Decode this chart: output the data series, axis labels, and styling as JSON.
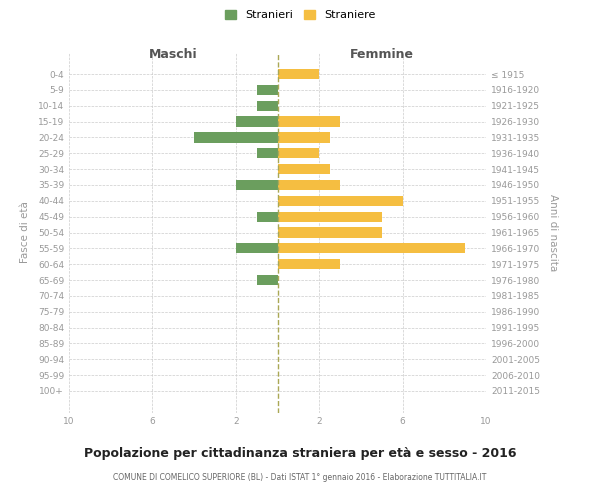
{
  "age_groups": [
    "0-4",
    "5-9",
    "10-14",
    "15-19",
    "20-24",
    "25-29",
    "30-34",
    "35-39",
    "40-44",
    "45-49",
    "50-54",
    "55-59",
    "60-64",
    "65-69",
    "70-74",
    "75-79",
    "80-84",
    "85-89",
    "90-94",
    "95-99",
    "100+"
  ],
  "birth_years": [
    "2011-2015",
    "2006-2010",
    "2001-2005",
    "1996-2000",
    "1991-1995",
    "1986-1990",
    "1981-1985",
    "1976-1980",
    "1971-1975",
    "1966-1970",
    "1961-1965",
    "1956-1960",
    "1951-1955",
    "1946-1950",
    "1941-1945",
    "1936-1940",
    "1931-1935",
    "1926-1930",
    "1921-1925",
    "1916-1920",
    "≤ 1915"
  ],
  "males": [
    0,
    1,
    1,
    2,
    4,
    1,
    0,
    2,
    0,
    1,
    0,
    2,
    0,
    1,
    0,
    0,
    0,
    0,
    0,
    0,
    0
  ],
  "females": [
    2,
    0,
    0,
    3,
    2.5,
    2,
    2.5,
    3,
    6,
    5,
    5,
    9,
    3,
    0,
    0,
    0,
    0,
    0,
    0,
    0,
    0
  ],
  "male_color": "#6b9e5e",
  "female_color": "#f5be41",
  "background_color": "#ffffff",
  "grid_color": "#cccccc",
  "title": "Popolazione per cittadinanza straniera per età e sesso - 2016",
  "subtitle": "COMUNE DI COMELICO SUPERIORE (BL) - Dati ISTAT 1° gennaio 2016 - Elaborazione TUTTITALIA.IT",
  "xlabel_left": "Maschi",
  "xlabel_right": "Femmine",
  "ylabel_left": "Fasce di età",
  "ylabel_right": "Anni di nascita",
  "xlim": 10,
  "legend_stranieri": "Stranieri",
  "legend_straniere": "Straniere"
}
